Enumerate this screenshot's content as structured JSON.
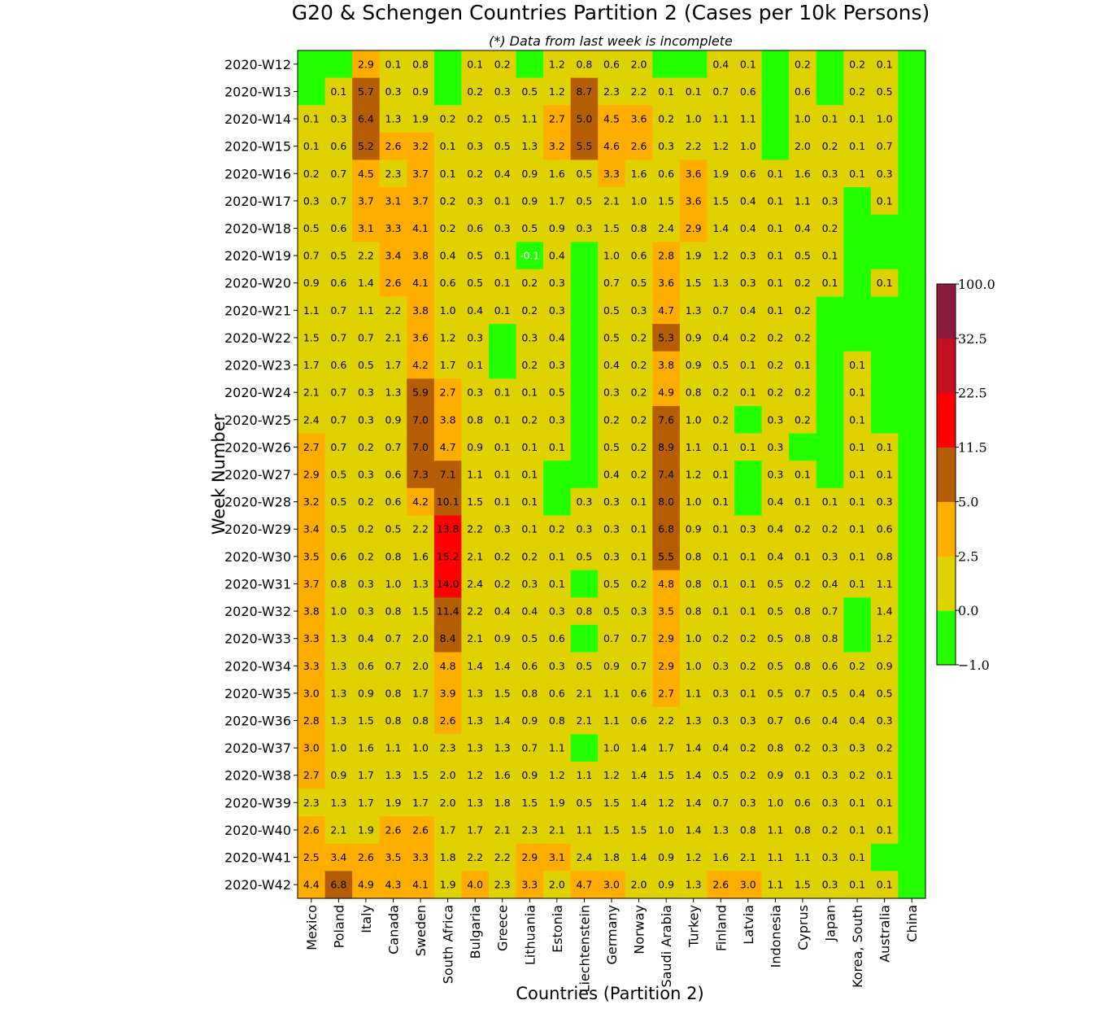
{
  "chart_data": {
    "type": "heatmap",
    "title": "G20 & Schengen Countries Partition 2 (Cases per 10k Persons)",
    "subtitle": "(*) Data from last week is incomplete",
    "xlabel": "Countries (Partition 2)",
    "ylabel": "Week Number",
    "x": [
      "Mexico",
      "Poland",
      "Italy",
      "Canada",
      "Sweden",
      "South Africa",
      "Bulgaria",
      "Greece",
      "Lithuania",
      "Estonia",
      "Liechtenstein",
      "Germany",
      "Norway",
      "Saudi Arabia",
      "Turkey",
      "Finland",
      "Latvia",
      "Indonesia",
      "Cyprus",
      "Japan",
      "Korea, South",
      "Australia",
      "China"
    ],
    "y": [
      "2020-W12",
      "2020-W13",
      "2020-W14",
      "2020-W15",
      "2020-W16",
      "2020-W17",
      "2020-W18",
      "2020-W19",
      "2020-W20",
      "2020-W21",
      "2020-W22",
      "2020-W23",
      "2020-W24",
      "2020-W25",
      "2020-W26",
      "2020-W27",
      "2020-W28",
      "2020-W29",
      "2020-W30",
      "2020-W31",
      "2020-W32",
      "2020-W33",
      "2020-W34",
      "2020-W35",
      "2020-W36",
      "2020-W37",
      "2020-W38",
      "2020-W39",
      "2020-W40",
      "2020-W41",
      "2020-W42"
    ],
    "values": [
      [
        null,
        null,
        2.9,
        0.1,
        0.8,
        null,
        0.1,
        0.2,
        null,
        1.2,
        0.8,
        0.6,
        2.0,
        null,
        null,
        0.4,
        0.1,
        null,
        0.2,
        null,
        0.2,
        0.1,
        null
      ],
      [
        null,
        0.1,
        5.7,
        0.3,
        0.9,
        null,
        0.2,
        0.3,
        0.5,
        1.2,
        8.7,
        2.3,
        2.2,
        0.1,
        0.1,
        0.7,
        0.6,
        null,
        0.6,
        null,
        0.2,
        0.5,
        null
      ],
      [
        0.1,
        0.3,
        6.4,
        1.3,
        1.9,
        0.2,
        0.2,
        0.5,
        1.1,
        2.7,
        5.0,
        4.5,
        3.6,
        0.2,
        1.0,
        1.1,
        1.1,
        null,
        1.0,
        0.1,
        0.1,
        1.0,
        null
      ],
      [
        0.1,
        0.6,
        5.2,
        2.6,
        3.2,
        0.1,
        0.3,
        0.5,
        1.3,
        3.2,
        5.5,
        4.6,
        2.6,
        0.3,
        2.2,
        1.2,
        1.0,
        null,
        2.0,
        0.2,
        0.1,
        0.7,
        null
      ],
      [
        0.2,
        0.7,
        4.5,
        2.3,
        3.7,
        0.1,
        0.2,
        0.4,
        0.9,
        1.6,
        0.5,
        3.3,
        1.6,
        0.6,
        3.6,
        1.9,
        0.6,
        0.1,
        1.6,
        0.3,
        0.1,
        0.3,
        null
      ],
      [
        0.3,
        0.7,
        3.7,
        3.1,
        3.7,
        0.2,
        0.3,
        0.1,
        0.9,
        1.7,
        0.5,
        2.1,
        1.0,
        1.5,
        3.6,
        1.5,
        0.4,
        0.1,
        1.1,
        0.3,
        null,
        0.1,
        null
      ],
      [
        0.5,
        0.6,
        3.1,
        3.3,
        4.1,
        0.2,
        0.6,
        0.3,
        0.5,
        0.9,
        0.3,
        1.5,
        0.8,
        2.4,
        2.9,
        1.4,
        0.4,
        0.1,
        0.4,
        0.2,
        null,
        null,
        null
      ],
      [
        0.7,
        0.5,
        2.2,
        3.4,
        3.8,
        0.4,
        0.5,
        0.1,
        -0.1,
        0.4,
        null,
        1.0,
        0.6,
        2.8,
        1.9,
        1.2,
        0.3,
        0.1,
        0.5,
        0.1,
        null,
        null,
        null
      ],
      [
        0.9,
        0.6,
        1.4,
        2.6,
        4.1,
        0.6,
        0.5,
        0.1,
        0.2,
        0.3,
        null,
        0.7,
        0.5,
        3.6,
        1.5,
        1.3,
        0.3,
        0.1,
        0.2,
        0.1,
        null,
        0.1,
        null
      ],
      [
        1.1,
        0.7,
        1.1,
        2.2,
        3.8,
        1.0,
        0.4,
        0.1,
        0.2,
        0.3,
        null,
        0.5,
        0.3,
        4.7,
        1.3,
        0.7,
        0.4,
        0.1,
        0.2,
        null,
        null,
        null,
        null
      ],
      [
        1.5,
        0.7,
        0.7,
        2.1,
        3.6,
        1.2,
        0.3,
        null,
        0.3,
        0.4,
        null,
        0.5,
        0.2,
        5.3,
        0.9,
        0.4,
        0.2,
        0.2,
        0.2,
        null,
        null,
        null,
        null
      ],
      [
        1.7,
        0.6,
        0.5,
        1.7,
        4.2,
        1.7,
        0.1,
        null,
        0.2,
        0.3,
        null,
        0.4,
        0.2,
        3.8,
        0.9,
        0.5,
        0.1,
        0.2,
        0.1,
        null,
        0.1,
        null,
        null
      ],
      [
        2.1,
        0.7,
        0.3,
        1.3,
        5.9,
        2.7,
        0.3,
        0.1,
        0.1,
        0.5,
        null,
        0.3,
        0.2,
        4.9,
        0.8,
        0.2,
        0.1,
        0.2,
        0.2,
        null,
        0.1,
        null,
        null
      ],
      [
        2.4,
        0.7,
        0.3,
        0.9,
        7.0,
        3.8,
        0.8,
        0.1,
        0.2,
        0.3,
        null,
        0.2,
        0.2,
        7.6,
        1.0,
        0.2,
        null,
        0.3,
        0.2,
        null,
        0.1,
        null,
        null
      ],
      [
        2.7,
        0.7,
        0.2,
        0.7,
        7.0,
        4.7,
        0.9,
        0.1,
        0.1,
        0.1,
        null,
        0.5,
        0.2,
        8.9,
        1.1,
        0.1,
        0.1,
        0.3,
        null,
        null,
        0.1,
        0.1,
        null
      ],
      [
        2.9,
        0.5,
        0.3,
        0.6,
        7.3,
        7.1,
        1.1,
        0.1,
        0.1,
        null,
        null,
        0.4,
        0.2,
        7.4,
        1.2,
        0.1,
        null,
        0.3,
        0.1,
        null,
        0.1,
        0.1,
        null
      ],
      [
        3.2,
        0.5,
        0.2,
        0.6,
        4.2,
        10.1,
        1.5,
        0.1,
        0.1,
        null,
        0.3,
        0.3,
        0.1,
        8.0,
        1.0,
        0.1,
        null,
        0.4,
        0.1,
        0.1,
        0.1,
        0.3,
        null
      ],
      [
        3.4,
        0.5,
        0.2,
        0.5,
        2.2,
        13.8,
        2.2,
        0.3,
        0.1,
        0.2,
        0.3,
        0.3,
        0.1,
        6.8,
        0.9,
        0.1,
        0.3,
        0.4,
        0.2,
        0.2,
        0.1,
        0.6,
        null
      ],
      [
        3.5,
        0.6,
        0.2,
        0.8,
        1.6,
        15.2,
        2.1,
        0.2,
        0.2,
        0.1,
        0.5,
        0.3,
        0.1,
        5.5,
        0.8,
        0.1,
        0.1,
        0.4,
        0.1,
        0.3,
        0.1,
        0.8,
        null
      ],
      [
        3.7,
        0.8,
        0.3,
        1.0,
        1.3,
        14.0,
        2.4,
        0.2,
        0.3,
        0.1,
        null,
        0.5,
        0.2,
        4.8,
        0.8,
        0.1,
        0.1,
        0.5,
        0.2,
        0.4,
        0.1,
        1.1,
        null
      ],
      [
        3.8,
        1.0,
        0.3,
        0.8,
        1.5,
        11.4,
        2.2,
        0.4,
        0.4,
        0.3,
        0.8,
        0.5,
        0.3,
        3.5,
        0.8,
        0.1,
        0.1,
        0.5,
        0.8,
        0.7,
        null,
        1.4,
        null
      ],
      [
        3.3,
        1.3,
        0.4,
        0.7,
        2.0,
        8.4,
        2.1,
        0.9,
        0.5,
        0.6,
        null,
        0.7,
        0.7,
        2.9,
        1.0,
        0.2,
        0.2,
        0.5,
        0.8,
        0.8,
        null,
        1.2,
        null
      ],
      [
        3.3,
        1.3,
        0.6,
        0.7,
        2.0,
        4.8,
        1.4,
        1.4,
        0.6,
        0.3,
        0.5,
        0.9,
        0.7,
        2.9,
        1.0,
        0.3,
        0.2,
        0.5,
        0.8,
        0.6,
        0.2,
        0.9,
        null
      ],
      [
        3.0,
        1.3,
        0.9,
        0.8,
        1.7,
        3.9,
        1.3,
        1.5,
        0.8,
        0.6,
        2.1,
        1.1,
        0.6,
        2.7,
        1.1,
        0.3,
        0.1,
        0.5,
        0.7,
        0.5,
        0.4,
        0.5,
        null
      ],
      [
        2.8,
        1.3,
        1.5,
        0.8,
        0.8,
        2.6,
        1.3,
        1.4,
        0.9,
        0.8,
        2.1,
        1.1,
        0.6,
        2.2,
        1.3,
        0.3,
        0.3,
        0.7,
        0.6,
        0.4,
        0.4,
        0.3,
        null
      ],
      [
        3.0,
        1.0,
        1.6,
        1.1,
        1.0,
        2.3,
        1.3,
        1.3,
        0.7,
        1.1,
        null,
        1.0,
        1.4,
        1.7,
        1.4,
        0.4,
        0.2,
        0.8,
        0.2,
        0.3,
        0.3,
        0.2,
        null
      ],
      [
        2.7,
        0.9,
        1.7,
        1.3,
        1.5,
        2.0,
        1.2,
        1.6,
        0.9,
        1.2,
        1.1,
        1.2,
        1.4,
        1.5,
        1.4,
        0.5,
        0.2,
        0.9,
        0.1,
        0.3,
        0.2,
        0.1,
        null
      ],
      [
        2.3,
        1.3,
        1.7,
        1.9,
        1.7,
        2.0,
        1.3,
        1.8,
        1.5,
        1.9,
        0.5,
        1.5,
        1.4,
        1.2,
        1.4,
        0.7,
        0.3,
        1.0,
        0.6,
        0.3,
        0.1,
        0.1,
        null
      ],
      [
        2.6,
        2.1,
        1.9,
        2.6,
        2.6,
        1.7,
        1.7,
        2.1,
        2.3,
        2.1,
        1.1,
        1.5,
        1.5,
        1.0,
        1.4,
        1.3,
        0.8,
        1.1,
        0.8,
        0.2,
        0.1,
        0.1,
        null
      ],
      [
        2.5,
        3.4,
        2.6,
        3.5,
        3.3,
        1.8,
        2.2,
        2.2,
        2.9,
        3.1,
        2.4,
        1.8,
        1.4,
        0.9,
        1.2,
        1.6,
        2.1,
        1.1,
        1.1,
        0.3,
        0.1,
        null,
        null
      ],
      [
        4.4,
        6.8,
        4.9,
        4.3,
        4.1,
        1.9,
        4.0,
        2.3,
        3.3,
        2.0,
        4.7,
        3.0,
        2.0,
        0.9,
        1.3,
        2.6,
        3.0,
        1.1,
        1.5,
        0.3,
        0.1,
        0.1,
        null
      ]
    ],
    "colorbar": {
      "boundaries": [
        -1.0,
        0.0,
        2.5,
        5.0,
        11.5,
        22.5,
        32.5,
        100.0
      ],
      "tick_labels": [
        "−1.0",
        "0.0",
        "2.5",
        "5.0",
        "11.5",
        "22.5",
        "32.5",
        "100.0"
      ],
      "colors": [
        "#22ff00",
        "#e0d200",
        "#ffae00",
        "#b65e06",
        "#ff0000",
        "#c41020",
        "#8b1a3c"
      ]
    },
    "grid": false,
    "legend": "colorbar-right"
  }
}
